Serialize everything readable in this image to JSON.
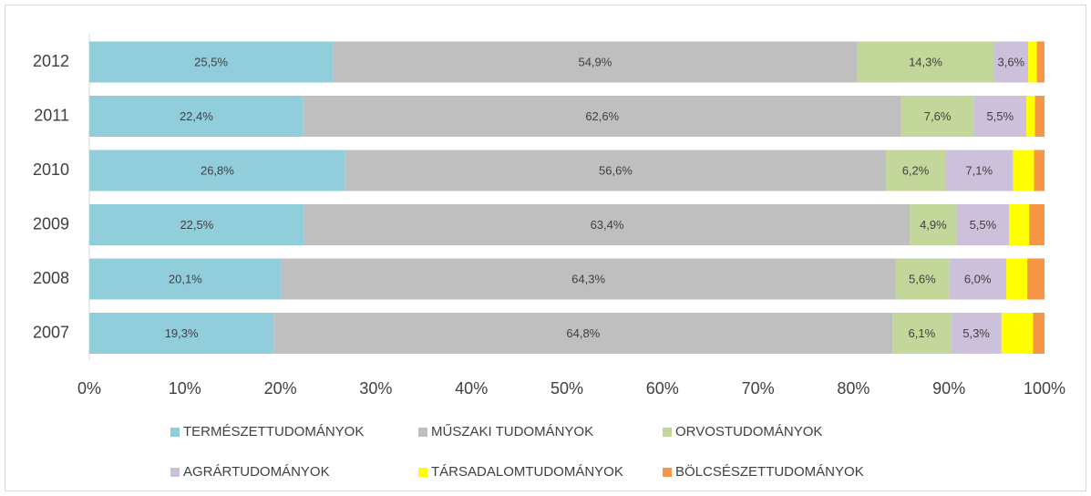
{
  "chart_data": {
    "type": "stacked-bar-horizontal",
    "categories": [
      "2012",
      "2011",
      "2010",
      "2009",
      "2008",
      "2007"
    ],
    "xlim": [
      0,
      100
    ],
    "xticks": [
      {
        "value": 0,
        "label": "0%"
      },
      {
        "value": 10,
        "label": "10%"
      },
      {
        "value": 20,
        "label": "20%"
      },
      {
        "value": 30,
        "label": "30%"
      },
      {
        "value": 40,
        "label": "40%"
      },
      {
        "value": 50,
        "label": "50%"
      },
      {
        "value": 60,
        "label": "60%"
      },
      {
        "value": 70,
        "label": "70%"
      },
      {
        "value": 80,
        "label": "80%"
      },
      {
        "value": 90,
        "label": "90%"
      },
      {
        "value": 100,
        "label": "100%"
      }
    ],
    "grid": false,
    "series": [
      {
        "name": "TERMÉSZETTUDOMÁNYOK",
        "color": "#92cddc",
        "values": [
          25.5,
          22.4,
          26.8,
          22.5,
          20.1,
          19.3
        ],
        "value_labels": [
          "25,5%",
          "22,4%",
          "26,8%",
          "22,5%",
          "20,1%",
          "19,3%"
        ]
      },
      {
        "name": "MŰSZAKI TUDOMÁNYOK",
        "color": "#bfbfbf",
        "values": [
          54.9,
          62.6,
          56.6,
          63.4,
          64.3,
          64.8
        ],
        "value_labels": [
          "54,9%",
          "62,6%",
          "56,6%",
          "63,4%",
          "64,3%",
          "64,8%"
        ]
      },
      {
        "name": "ORVOSTUDOMÁNYOK",
        "color": "#c4d79b",
        "values": [
          14.3,
          7.6,
          6.2,
          4.9,
          5.6,
          6.1
        ],
        "value_labels": [
          "14,3%",
          "7,6%",
          "6,2%",
          "4,9%",
          "5,6%",
          "6,1%"
        ]
      },
      {
        "name": "AGRÁRTUDOMÁNYOK",
        "color": "#ccc0da",
        "values": [
          3.6,
          5.5,
          7.1,
          5.5,
          6.0,
          5.3
        ],
        "value_labels": [
          "3,6%",
          "5,5%",
          "7,1%",
          "5,5%",
          "6,0%",
          "5,3%"
        ]
      },
      {
        "name": "TÁRSADALOMTUDOMÁNYOK",
        "color": "#ffff00",
        "values": [
          0.9,
          0.9,
          2.2,
          2.1,
          2.2,
          3.3
        ]
      },
      {
        "name": "BÖLCSÉSZETTUDOMÁNYOK",
        "color": "#f79646",
        "values": [
          0.8,
          1.0,
          1.1,
          1.6,
          1.8,
          1.2
        ]
      }
    ]
  }
}
